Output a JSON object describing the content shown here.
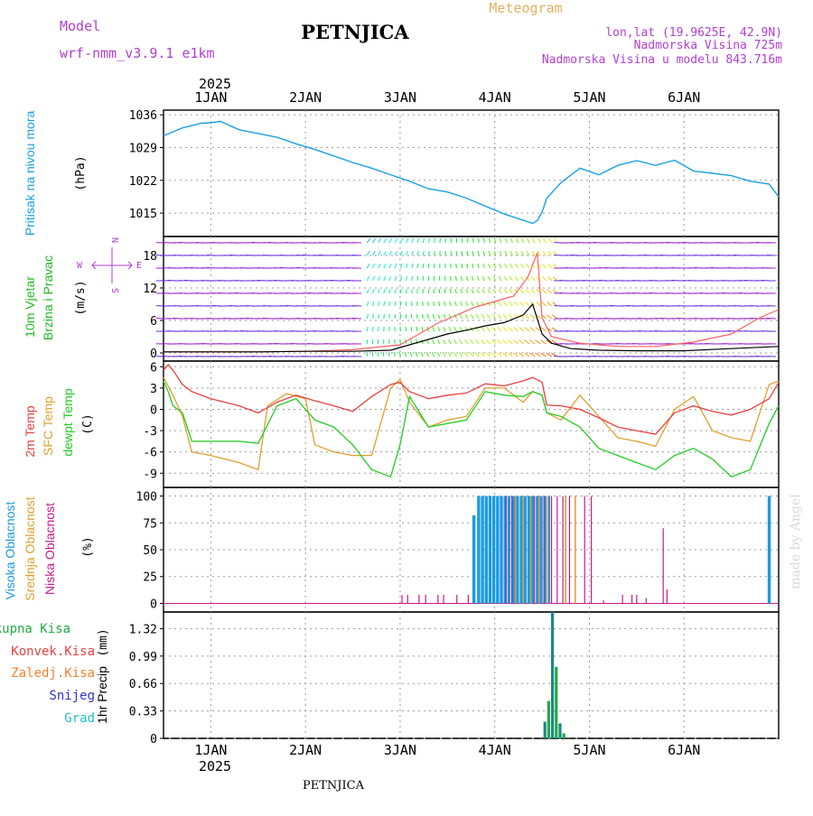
{
  "header": {
    "model_label": "Model",
    "model_name": "wrf-nmm_v3.9.1 e1km",
    "station": "PETNJICA",
    "meteogram": "Meteogram",
    "lonlat": "lon,lat (19.9625E, 42.9N)",
    "elevation": "Nadmorska Visina 725m",
    "model_elevation": "Nadmorska Visina u modelu 843.716m",
    "footer_station": "PETNJICA",
    "credit": "made by Angel",
    "year_top": "2025",
    "year_bottom": "2025"
  },
  "colors": {
    "pressure": "#1aa0e6",
    "t2m": "#e84040",
    "sfc": "#e0a030",
    "dewpt": "#22cc22",
    "high_cloud": "#1a9ae6",
    "mid_cloud": "#e0a030",
    "low_cloud": "#c81a8c",
    "header_purple": "#b040d0",
    "meteogram_orange": "#e0b060",
    "precip_total": "#22aa44",
    "precip_bar": "#1a8a8a"
  },
  "chart_data": [
    {
      "type": "line",
      "panel": "pressure",
      "ylabel_main": "Pritisak na nivou mora",
      "ylabel_unit": "(hPa)",
      "x_ticks": [
        "1JAN",
        "2JAN",
        "3JAN",
        "4JAN",
        "5JAN",
        "6JAN"
      ],
      "y_ticks": [
        "1015",
        "1022",
        "1029",
        "1036"
      ],
      "ylim": [
        1010,
        1037
      ],
      "series": [
        {
          "x": [
            0,
            0.2,
            0.4,
            0.5,
            0.6,
            0.8,
            1.0,
            1.2,
            1.4,
            1.6,
            1.8,
            2.0,
            2.2,
            2.4,
            2.6,
            2.8,
            3.0,
            3.2,
            3.4,
            3.6,
            3.8,
            3.9,
            3.95,
            4.0,
            4.05,
            4.2,
            4.4,
            4.6,
            4.8,
            5.0,
            5.2,
            5.4,
            5.6,
            5.8,
            6.0,
            6.2,
            6.4,
            6.5
          ],
          "y": [
            1031.5,
            1033.2,
            1034.2,
            1034.3,
            1034.6,
            1032.8,
            1032.0,
            1031.2,
            1029.8,
            1028.6,
            1027.2,
            1025.8,
            1024.6,
            1023.2,
            1021.8,
            1020.2,
            1019.5,
            1018.2,
            1016.5,
            1014.8,
            1013.5,
            1012.8,
            1013.4,
            1015.2,
            1018.2,
            1021.5,
            1024.6,
            1023.2,
            1025.2,
            1026.2,
            1025.2,
            1026.3,
            1024.0,
            1023.5,
            1023.0,
            1021.8,
            1021.2,
            1018.5
          ]
        }
      ]
    },
    {
      "type": "line",
      "panel": "wind",
      "ylabel_main": "10m Vjetar",
      "ylabel_sub": "Brzina i Pravac",
      "ylabel_unit": "(m/s)",
      "compass": {
        "n": "N",
        "s": "S",
        "e": "E",
        "w": "W"
      },
      "y_ticks": [
        "0",
        "6",
        "12",
        "18"
      ],
      "ylim": [
        -1.5,
        21.5
      ],
      "series": [
        {
          "name": "speed",
          "x": [
            0,
            0.5,
            1.0,
            1.5,
            2.0,
            2.4,
            2.6,
            2.8,
            3.0,
            3.2,
            3.4,
            3.6,
            3.8,
            3.9,
            4.0,
            4.1,
            4.3,
            4.6,
            5.0,
            5.5,
            6.0,
            6.5
          ],
          "y": [
            0.2,
            0.2,
            0.2,
            0.3,
            0.3,
            0.5,
            1.5,
            2.5,
            3.5,
            4.2,
            5.0,
            5.6,
            7.0,
            9.0,
            3.5,
            1.8,
            0.8,
            0.5,
            0.4,
            0.4,
            0.8,
            1.2
          ]
        },
        {
          "name": "gust",
          "x": [
            0,
            1.0,
            1.5,
            2.0,
            2.5,
            2.7,
            2.9,
            3.1,
            3.3,
            3.5,
            3.7,
            3.85,
            3.95,
            4.0,
            4.1,
            4.4,
            4.8,
            5.2,
            5.6,
            6.0,
            6.3,
            6.5
          ],
          "y": [
            0.2,
            0.2,
            0.3,
            0.6,
            1.5,
            3.5,
            5.5,
            7.0,
            8.5,
            9.5,
            10.5,
            14.0,
            18.5,
            6.5,
            3.0,
            1.8,
            1.2,
            1.2,
            2.0,
            3.5,
            6.5,
            8.0
          ]
        }
      ]
    },
    {
      "type": "line",
      "panel": "temperature",
      "ylabel_main": "2m Temp",
      "ylabel_sub": "SFC Temp",
      "ylabel_sub2": "dewpt Temp",
      "ylabel_unit": "(C)",
      "y_ticks": [
        "-9",
        "-6",
        "-3",
        "0",
        "3",
        "6"
      ],
      "ylim": [
        -11,
        6.8
      ],
      "series": [
        {
          "name": "2m Temp",
          "x": [
            0,
            0.05,
            0.1,
            0.2,
            0.3,
            0.5,
            0.8,
            1.0,
            1.2,
            1.4,
            1.6,
            1.8,
            2.0,
            2.2,
            2.4,
            2.5,
            2.6,
            2.8,
            3.0,
            3.2,
            3.4,
            3.6,
            3.8,
            3.9,
            4.0,
            4.05,
            4.2,
            4.4,
            4.6,
            4.8,
            5.0,
            5.2,
            5.4,
            5.6,
            5.8,
            6.0,
            6.2,
            6.4,
            6.5
          ],
          "y": [
            5.5,
            6.3,
            5.5,
            3.5,
            2.5,
            1.5,
            0.5,
            -0.5,
            1.0,
            2.0,
            1.2,
            0.5,
            -0.3,
            1.8,
            3.5,
            3.8,
            2.5,
            1.5,
            2.0,
            2.3,
            3.6,
            3.3,
            4.0,
            4.5,
            3.8,
            0.6,
            0.5,
            0.0,
            -1.2,
            -2.5,
            -3.0,
            -3.5,
            -0.5,
            0.5,
            -0.3,
            -0.8,
            0.0,
            1.5,
            3.8
          ]
        },
        {
          "name": "SFC Temp",
          "x": [
            0,
            0.1,
            0.2,
            0.3,
            0.5,
            0.8,
            1.0,
            1.1,
            1.3,
            1.5,
            1.6,
            1.8,
            2.0,
            2.2,
            2.4,
            2.5,
            2.6,
            2.8,
            3.0,
            3.2,
            3.4,
            3.6,
            3.8,
            3.9,
            4.0,
            4.05,
            4.2,
            4.4,
            4.6,
            4.8,
            5.0,
            5.2,
            5.4,
            5.6,
            5.8,
            6.0,
            6.2,
            6.4,
            6.5
          ],
          "y": [
            4.5,
            2.0,
            -1.0,
            -6.0,
            -6.5,
            -7.5,
            -8.5,
            0.5,
            2.2,
            1.5,
            -5.0,
            -6.0,
            -6.5,
            -6.5,
            3.0,
            4.2,
            1.0,
            -2.5,
            -1.5,
            -1.0,
            3.0,
            3.0,
            1.0,
            2.5,
            2.0,
            -0.5,
            -1.5,
            2.0,
            -1.0,
            -4.0,
            -4.5,
            -5.2,
            0.0,
            1.8,
            -3.0,
            -4.0,
            -4.5,
            3.5,
            4.0
          ]
        },
        {
          "name": "dewpt Temp",
          "x": [
            0,
            0.05,
            0.1,
            0.2,
            0.3,
            0.5,
            0.8,
            1.0,
            1.2,
            1.4,
            1.6,
            1.8,
            2.0,
            2.2,
            2.4,
            2.5,
            2.6,
            2.8,
            3.0,
            3.2,
            3.4,
            3.6,
            3.8,
            3.9,
            4.0,
            4.05,
            4.2,
            4.4,
            4.6,
            4.8,
            5.0,
            5.2,
            5.4,
            5.6,
            5.8,
            6.0,
            6.2,
            6.4,
            6.5
          ],
          "y": [
            4.0,
            2.5,
            0.5,
            -0.5,
            -4.5,
            -4.5,
            -4.5,
            -4.8,
            0.5,
            1.5,
            -1.5,
            -2.5,
            -5.0,
            -8.5,
            -9.5,
            -5.0,
            1.8,
            -2.5,
            -2.0,
            -1.5,
            2.5,
            2.0,
            1.8,
            2.5,
            2.0,
            -0.5,
            -1.0,
            -2.5,
            -5.5,
            -6.5,
            -7.5,
            -8.5,
            -6.5,
            -5.5,
            -7.0,
            -9.5,
            -8.5,
            -2.0,
            0.5
          ]
        }
      ]
    },
    {
      "type": "bar",
      "panel": "cloud",
      "ylabel_main": "Visoka Oblacnost",
      "ylabel_sub": "Srednja Oblacnost",
      "ylabel_sub2": "Niska Oblacnost",
      "ylabel_unit": "(%)",
      "y_ticks": [
        "0",
        "25",
        "50",
        "75",
        "100"
      ],
      "ylim": [
        -8,
        108
      ],
      "series": [
        {
          "name": "Visoka Oblacnost",
          "x": [
            3.28,
            3.33,
            3.37,
            3.41,
            3.45,
            3.49,
            3.53,
            3.57,
            3.61,
            3.65,
            3.7,
            3.74,
            3.78,
            3.82,
            3.86,
            3.9,
            3.95,
            3.99,
            4.03,
            4.07,
            6.4
          ],
          "y": [
            82,
            100,
            100,
            100,
            100,
            100,
            100,
            100,
            100,
            100,
            100,
            100,
            100,
            100,
            100,
            100,
            100,
            100,
            100,
            100,
            100
          ]
        },
        {
          "name": "Srednja Oblacnost",
          "x": [
            3.72,
            3.8,
            3.88,
            3.97,
            4.06,
            4.25,
            4.35
          ],
          "y": [
            100,
            100,
            100,
            100,
            100,
            100,
            100
          ]
        },
        {
          "name": "Niska Oblacnost",
          "x": [
            2.52,
            2.58,
            2.7,
            2.77,
            2.9,
            2.96,
            3.1,
            3.22,
            3.62,
            3.68,
            3.92,
            4.02,
            4.1,
            4.16,
            4.22,
            4.29,
            4.45,
            4.52,
            4.65,
            4.85,
            4.95,
            5.0,
            5.1,
            5.28,
            5.32
          ],
          "y": [
            8,
            8,
            8,
            8,
            8,
            8,
            8,
            8,
            100,
            100,
            100,
            100,
            100,
            100,
            100,
            100,
            100,
            100,
            3,
            8,
            8,
            8,
            5,
            70,
            13
          ]
        }
      ]
    },
    {
      "type": "bar",
      "panel": "precip",
      "ylabel_main": "1hr Precip",
      "ylabel_unit": "(mm)",
      "legend": [
        "Ukupna Kisa",
        "Konvek.Kisa",
        "Zaledj.Kisa",
        "Snijeg",
        "Grad"
      ],
      "legend_colors": [
        "#22aa44",
        "#e84040",
        "#f08030",
        "#3030d0",
        "#20c0c0"
      ],
      "y_ticks": [
        "0",
        "0.33",
        "0.66",
        "0.99",
        "1.32"
      ],
      "ylim": [
        0,
        1.52
      ],
      "series": [
        {
          "name": "Ukupna Kisa",
          "x": [
            4.03,
            4.07,
            4.11,
            4.15,
            4.19,
            4.23
          ],
          "y": [
            0.2,
            0.45,
            1.52,
            0.86,
            0.18,
            0.06
          ]
        }
      ]
    }
  ]
}
